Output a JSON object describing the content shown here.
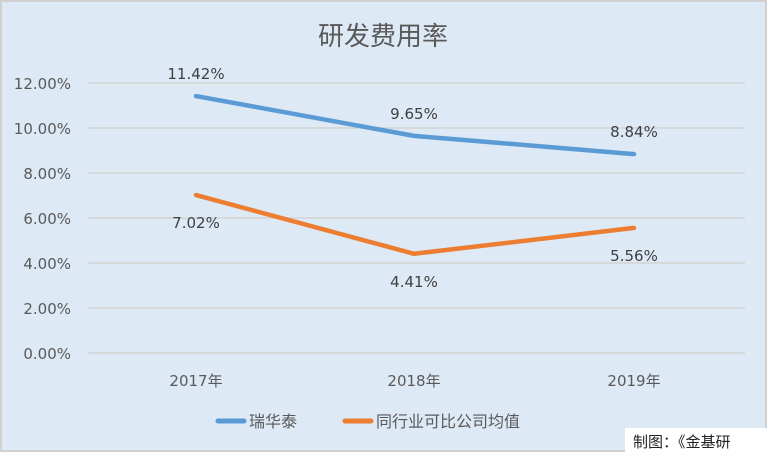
{
  "chart_data": {
    "type": "line",
    "title": "研发费用率",
    "categories": [
      "2017年",
      "2018年",
      "2019年"
    ],
    "series": [
      {
        "name": "瑞华泰",
        "values": [
          11.42,
          9.65,
          8.84
        ],
        "labels": [
          "11.42%",
          "9.65%",
          "8.84%"
        ],
        "color": "#5b9bd5",
        "label_pos": "above"
      },
      {
        "name": "同行业可比公司均值",
        "values": [
          7.02,
          4.41,
          5.56
        ],
        "labels": [
          "7.02%",
          "4.41%",
          "5.56%"
        ],
        "color": "#ed7d31",
        "label_pos": "below"
      }
    ],
    "ylim": [
      0,
      12
    ],
    "yticks": [
      0,
      2,
      4,
      6,
      8,
      10,
      12
    ],
    "ytick_labels": [
      "0.00%",
      "2.00%",
      "4.00%",
      "6.00%",
      "8.00%",
      "10.00%",
      "12.00%"
    ],
    "xlabel": "",
    "ylabel": "",
    "grid": true,
    "legend": "bottom"
  },
  "credit": "制图：《金基研"
}
